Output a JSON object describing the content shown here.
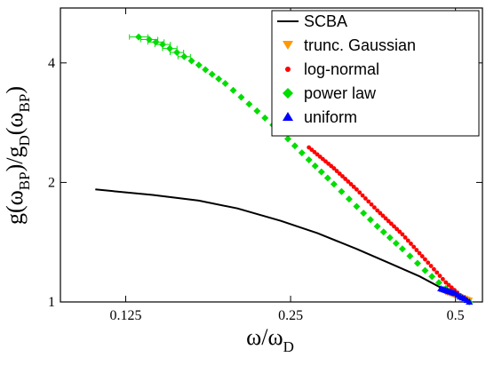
{
  "chart_data": {
    "type": "scatter",
    "xscale": "log2",
    "yscale": "log",
    "xlim": [
      0.095,
      0.56
    ],
    "ylim": [
      1,
      5.5
    ],
    "xticks": [
      0.125,
      0.25,
      0.5
    ],
    "xtick_labels": [
      "0.125",
      "0.25",
      "0.5"
    ],
    "yticks": [
      1,
      2,
      4
    ],
    "ytick_labels": [
      "1",
      "2",
      "4"
    ],
    "xlabel": {
      "main": "ω/ω",
      "sub": "D"
    },
    "ylabel": {
      "p1": "g(ω",
      "s1": "BP",
      "p2": ")/g",
      "s2": "D",
      "p3": "(ω",
      "s3": "BP",
      "p4": ")"
    },
    "grid": false,
    "legend_position": "top-right",
    "series": [
      {
        "name": "SCBA",
        "kind": "line",
        "color": "#000000",
        "x": [
          0.11,
          0.14,
          0.17,
          0.2,
          0.24,
          0.28,
          0.33,
          0.38,
          0.43,
          0.48,
          0.53
        ],
        "y": [
          1.92,
          1.86,
          1.8,
          1.72,
          1.6,
          1.49,
          1.36,
          1.25,
          1.16,
          1.07,
          1.0
        ]
      },
      {
        "name": "trunc. Gaussian",
        "kind": "marker",
        "marker": "triangle-down",
        "color": "#ff9900",
        "x": [
          0.48,
          0.49,
          0.5,
          0.51,
          0.52,
          0.53
        ],
        "y": [
          1.06,
          1.05,
          1.04,
          1.03,
          1.02,
          1.01
        ]
      },
      {
        "name": "log-normal",
        "kind": "marker",
        "marker": "circle",
        "color": "#ff0000",
        "x": [
          0.27,
          0.3,
          0.33,
          0.36,
          0.4,
          0.44,
          0.48,
          0.51,
          0.53
        ],
        "y": [
          2.45,
          2.17,
          1.92,
          1.7,
          1.48,
          1.28,
          1.12,
          1.04,
          1.0
        ]
      },
      {
        "name": "power law",
        "kind": "marker",
        "marker": "diamond",
        "color": "#00dd00",
        "x": [
          0.132,
          0.138,
          0.146,
          0.155,
          0.17,
          0.19,
          0.21,
          0.24,
          0.27,
          0.3,
          0.33,
          0.36,
          0.4,
          0.44,
          0.48,
          0.51,
          0.53
        ],
        "y": [
          4.65,
          4.58,
          4.45,
          4.25,
          3.95,
          3.55,
          3.15,
          2.68,
          2.28,
          1.98,
          1.74,
          1.55,
          1.36,
          1.2,
          1.08,
          1.03,
          1.0
        ],
        "error_bars_note": "horizontal error bars at the low-ω end"
      },
      {
        "name": "uniform",
        "kind": "marker",
        "marker": "triangle-up",
        "color": "#0000ff",
        "x": [
          0.47,
          0.48,
          0.49,
          0.5,
          0.51,
          0.52,
          0.53
        ],
        "y": [
          1.08,
          1.07,
          1.06,
          1.05,
          1.03,
          1.02,
          1.0
        ]
      }
    ]
  }
}
